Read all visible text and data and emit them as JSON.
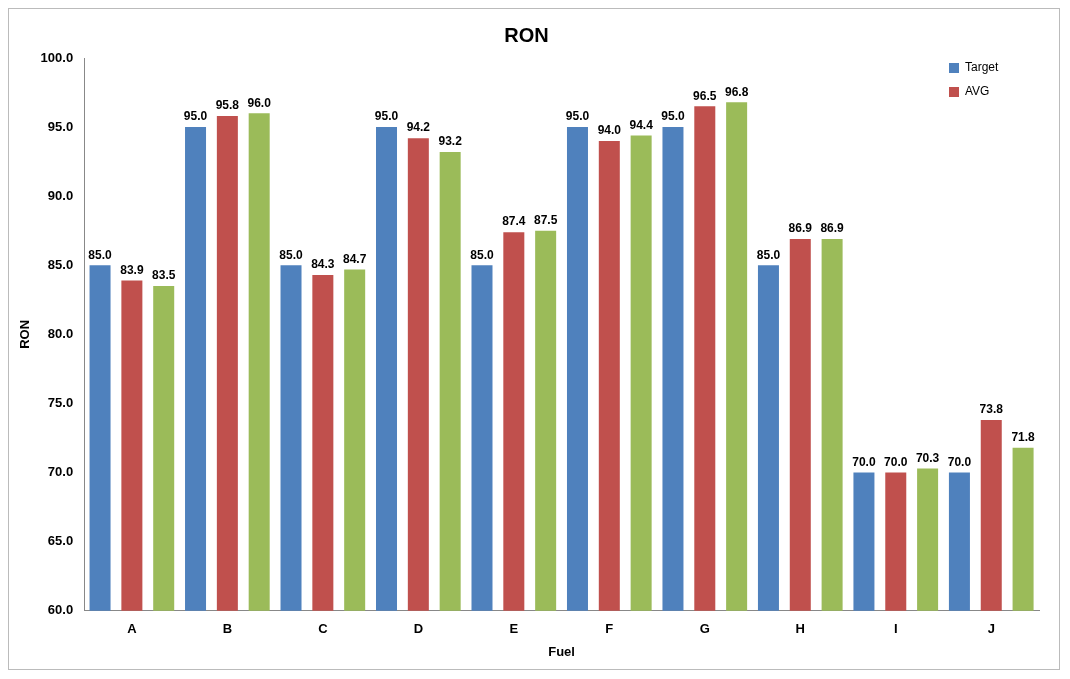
{
  "chart_data": {
    "type": "bar",
    "title": "RON",
    "xlabel": "Fuel",
    "ylabel": "RON",
    "categories": [
      "A",
      "B",
      "C",
      "D",
      "E",
      "F",
      "G",
      "H",
      "I",
      "J"
    ],
    "series": [
      {
        "name": "Target",
        "color": "#4f81bd",
        "values": [
          85.0,
          95.0,
          85.0,
          95.0,
          85.0,
          95.0,
          95.0,
          85.0,
          70.0,
          70.0
        ],
        "value_labels": [
          "85.0",
          "95.0",
          "85.0",
          "95.0",
          "85.0",
          "95.0",
          "95.0",
          "85.0",
          "70.0",
          "70.0"
        ]
      },
      {
        "name": "AVG",
        "color": "#c0504d",
        "values": [
          83.9,
          95.8,
          84.3,
          94.2,
          87.4,
          94.0,
          96.5,
          86.9,
          70.0,
          73.8
        ],
        "value_labels": [
          "83.9",
          "95.8",
          "84.3",
          "94.2",
          "87.4",
          "94.0",
          "96.5",
          "86.9",
          "70.0",
          "73.8"
        ]
      },
      {
        "color": "#9bbb59",
        "values": [
          83.5,
          96.0,
          84.7,
          93.2,
          87.5,
          94.4,
          96.8,
          86.9,
          70.3,
          71.8
        ],
        "value_labels": [
          "83.5",
          "96.0",
          "84.7",
          "93.2",
          "87.5",
          "94.4",
          "96.8",
          "86.9",
          "70.3",
          "71.8"
        ]
      }
    ],
    "ylim": [
      60,
      100
    ],
    "yticks": [
      {
        "value": 60,
        "label": "60.0"
      },
      {
        "value": 65,
        "label": "65.0"
      },
      {
        "value": 70,
        "label": "70.0"
      },
      {
        "value": 75,
        "label": "75.0"
      },
      {
        "value": 80,
        "label": "80.0"
      },
      {
        "value": 85,
        "label": "85.0"
      },
      {
        "value": 90,
        "label": "90.0"
      },
      {
        "value": 95,
        "label": "95.0"
      },
      {
        "value": 100,
        "label": "100.0"
      }
    ],
    "grid": false,
    "legend": "top right"
  }
}
